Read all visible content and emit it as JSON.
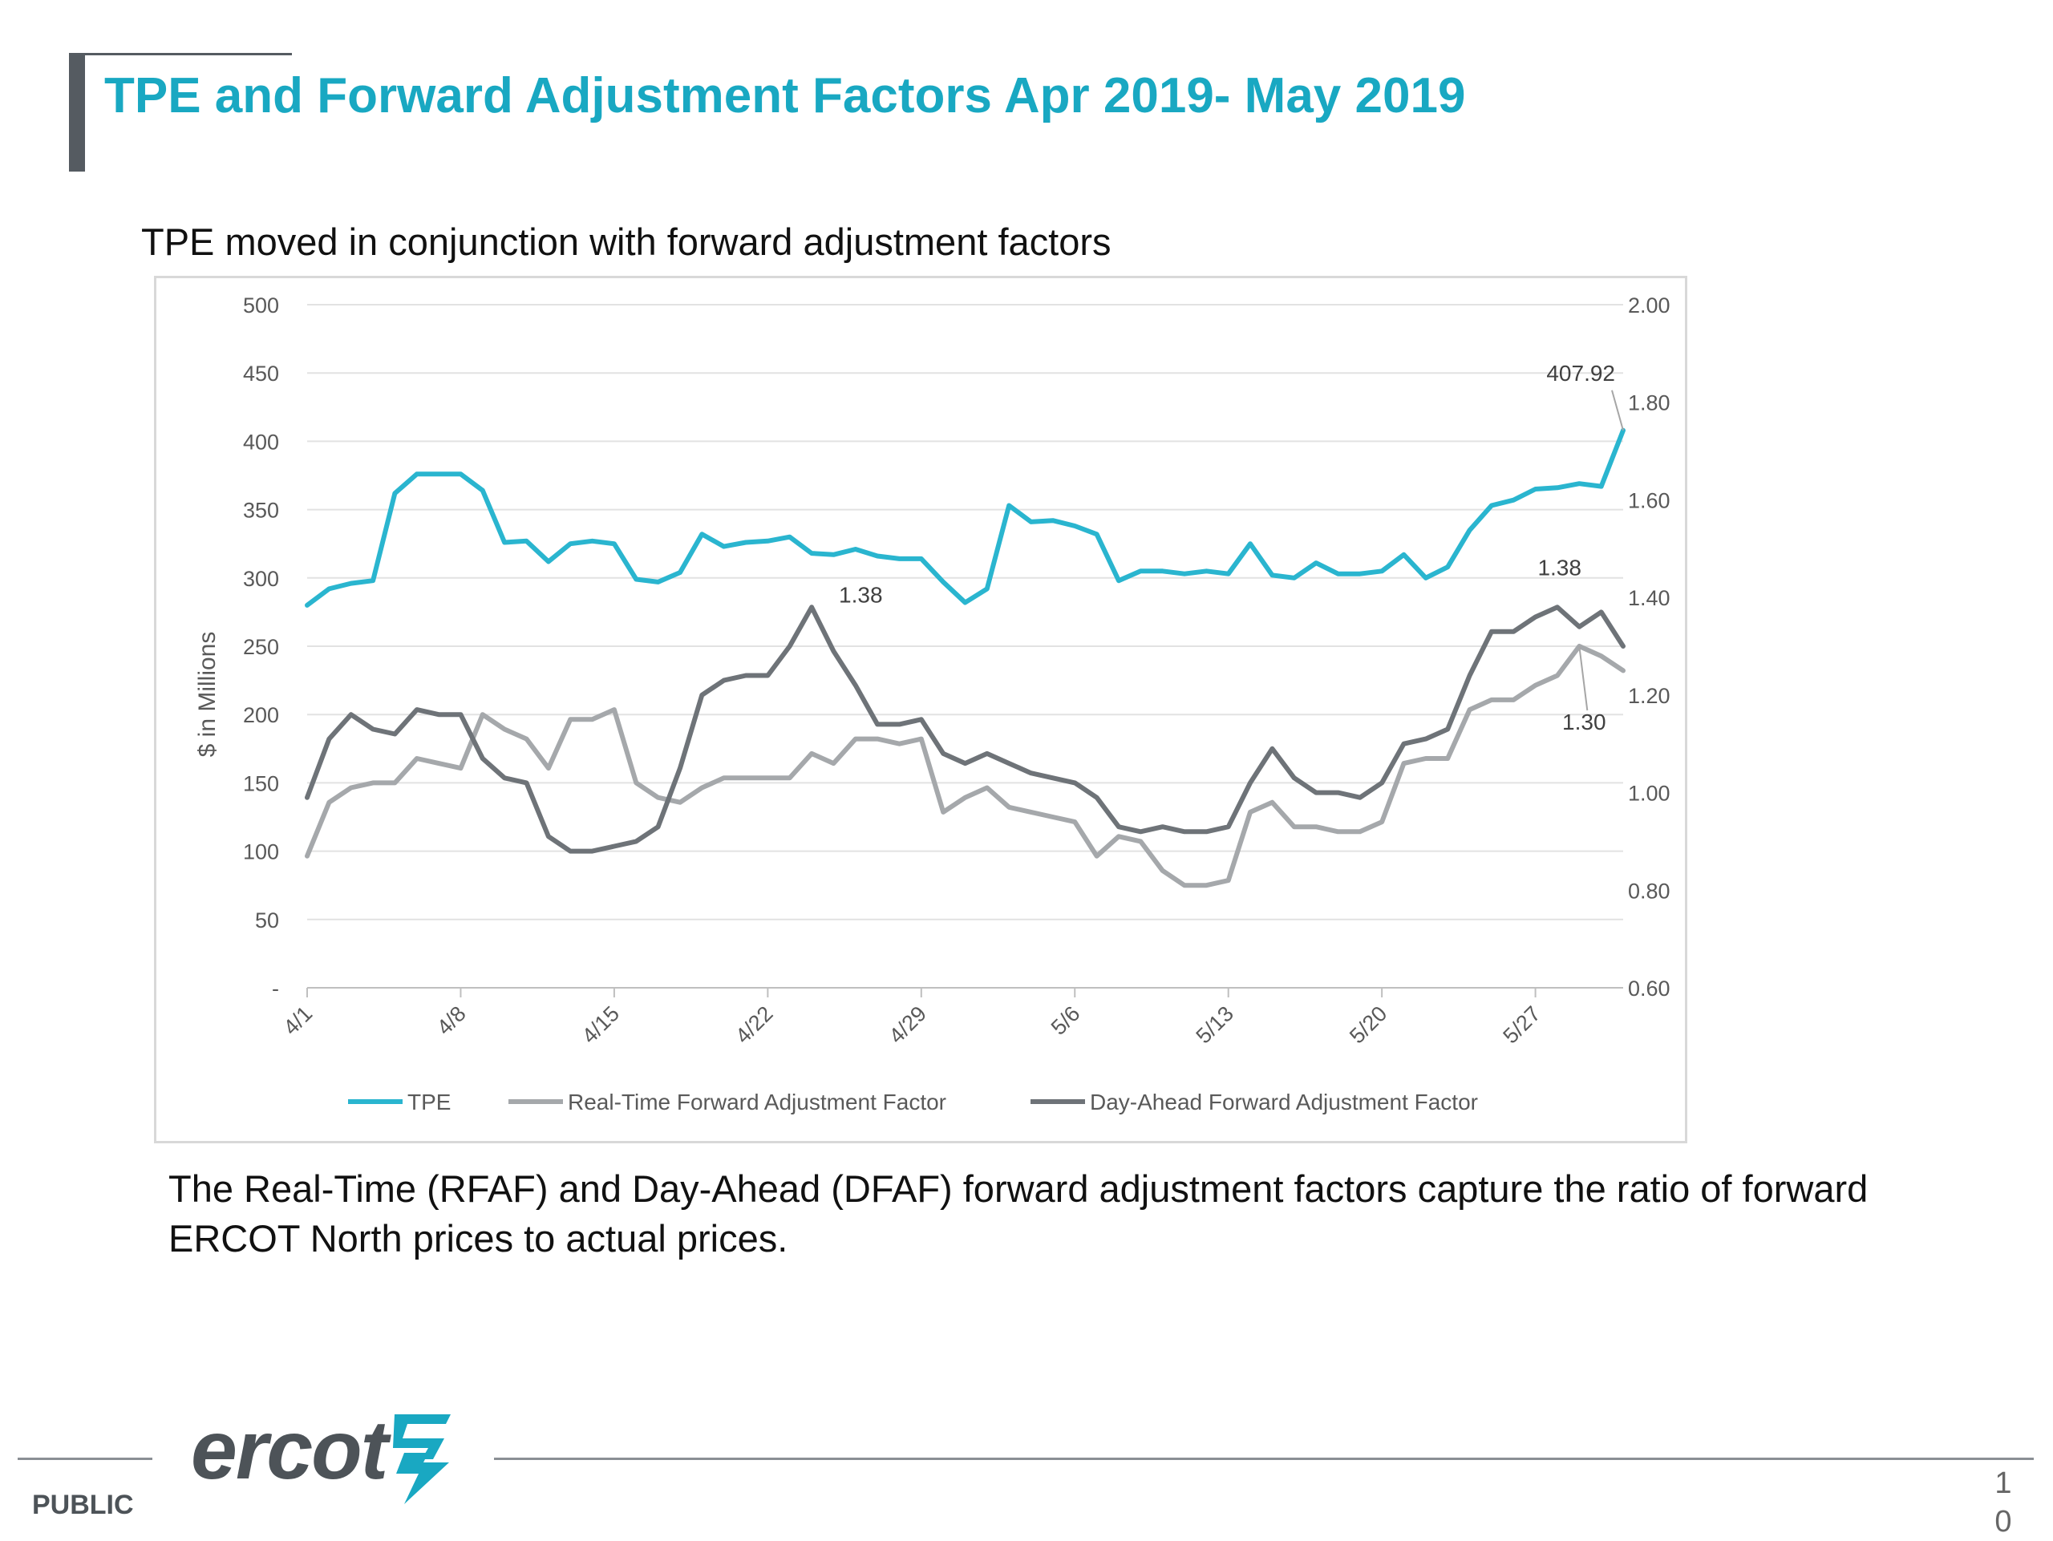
{
  "slide": {
    "title": "TPE and Forward Adjustment Factors Apr 2019- May 2019",
    "subtitle": "TPE moved in conjunction with forward adjustment factors",
    "caption": "The Real-Time (RFAF) and Day-Ahead (DFAF) forward adjustment factors capture the ratio of forward ERCOT North prices to actual prices.",
    "footer": {
      "logo_text": "ercot",
      "classification": "PUBLIC",
      "page_number": "10"
    }
  },
  "chart_data": {
    "type": "line",
    "title": "",
    "ylabel_left": "$ in Millions",
    "ylabel_right": "",
    "x_tick_labels": [
      "4/1",
      "4/8",
      "4/15",
      "4/22",
      "4/29",
      "5/6",
      "5/13",
      "5/20",
      "5/27"
    ],
    "x_tick_day_index": [
      0,
      7,
      14,
      21,
      28,
      35,
      42,
      49,
      56
    ],
    "y_left_range": [
      0,
      500
    ],
    "y_left_ticks": [
      {
        "value": 0,
        "label": "-"
      },
      {
        "value": 50,
        "label": "50"
      },
      {
        "value": 100,
        "label": "100"
      },
      {
        "value": 150,
        "label": "150"
      },
      {
        "value": 200,
        "label": "200"
      },
      {
        "value": 250,
        "label": "250"
      },
      {
        "value": 300,
        "label": "300"
      },
      {
        "value": 350,
        "label": "350"
      },
      {
        "value": 400,
        "label": "400"
      },
      {
        "value": 450,
        "label": "450"
      },
      {
        "value": 500,
        "label": "500"
      }
    ],
    "y_right_range": [
      0.6,
      2.0
    ],
    "y_right_ticks": [
      {
        "value": 0.6,
        "label": "0.60"
      },
      {
        "value": 0.8,
        "label": "0.80"
      },
      {
        "value": 1.0,
        "label": "1.00"
      },
      {
        "value": 1.2,
        "label": "1.20"
      },
      {
        "value": 1.4,
        "label": "1.40"
      },
      {
        "value": 1.6,
        "label": "1.60"
      },
      {
        "value": 1.8,
        "label": "1.80"
      },
      {
        "value": 2.0,
        "label": "2.00"
      }
    ],
    "grid": true,
    "legend_position": "bottom",
    "series": [
      {
        "name": "TPE",
        "axis": "left",
        "color": "#2ab5cf",
        "values": [
          280,
          292,
          296,
          298,
          362,
          376,
          376,
          376,
          364,
          326,
          327,
          312,
          325,
          327,
          325,
          299,
          297,
          304,
          332,
          323,
          326,
          327,
          330,
          318,
          317,
          321,
          316,
          314,
          314,
          297,
          282,
          292,
          353,
          341,
          342,
          338,
          332,
          298,
          305,
          305,
          303,
          305,
          303,
          325,
          302,
          300,
          311,
          303,
          303,
          305,
          317,
          300,
          308,
          335,
          353,
          357,
          365,
          366,
          369,
          367,
          408
        ]
      },
      {
        "name": "Real-Time Forward Adjustment Factor",
        "axis": "right",
        "color": "#a5a8ab",
        "values": [
          0.87,
          0.98,
          1.01,
          1.02,
          1.02,
          1.07,
          1.06,
          1.05,
          1.16,
          1.13,
          1.11,
          1.05,
          1.15,
          1.15,
          1.17,
          1.02,
          0.99,
          0.98,
          1.01,
          1.03,
          1.03,
          1.03,
          1.03,
          1.08,
          1.06,
          1.11,
          1.11,
          1.1,
          1.11,
          0.96,
          0.99,
          1.01,
          0.97,
          0.96,
          0.95,
          0.94,
          0.87,
          0.91,
          0.9,
          0.84,
          0.81,
          0.81,
          0.82,
          0.96,
          0.98,
          0.93,
          0.93,
          0.92,
          0.92,
          0.94,
          1.06,
          1.07,
          1.07,
          1.17,
          1.19,
          1.19,
          1.22,
          1.24,
          1.3,
          1.28,
          1.25
        ]
      },
      {
        "name": "Day-Ahead Forward Adjustment Factor",
        "axis": "right",
        "color": "#6e7378",
        "values": [
          0.99,
          1.11,
          1.16,
          1.13,
          1.12,
          1.17,
          1.16,
          1.16,
          1.07,
          1.03,
          1.02,
          0.91,
          0.88,
          0.88,
          0.89,
          0.9,
          0.93,
          1.05,
          1.2,
          1.23,
          1.24,
          1.24,
          1.3,
          1.38,
          1.29,
          1.22,
          1.14,
          1.14,
          1.15,
          1.08,
          1.06,
          1.08,
          1.06,
          1.04,
          1.03,
          1.02,
          0.99,
          0.93,
          0.92,
          0.93,
          0.92,
          0.92,
          0.93,
          1.02,
          1.09,
          1.03,
          1.0,
          1.0,
          0.99,
          1.02,
          1.1,
          1.11,
          1.13,
          1.24,
          1.33,
          1.33,
          1.36,
          1.38,
          1.34,
          1.37,
          1.3
        ]
      }
    ],
    "annotations": [
      {
        "series": 0,
        "index": 60,
        "text": "407.92"
      },
      {
        "series": 2,
        "index": 23,
        "text": "1.38"
      },
      {
        "series": 2,
        "index": 57,
        "text": "1.38"
      },
      {
        "series": 1,
        "index": 58,
        "text": "1.30"
      }
    ]
  }
}
